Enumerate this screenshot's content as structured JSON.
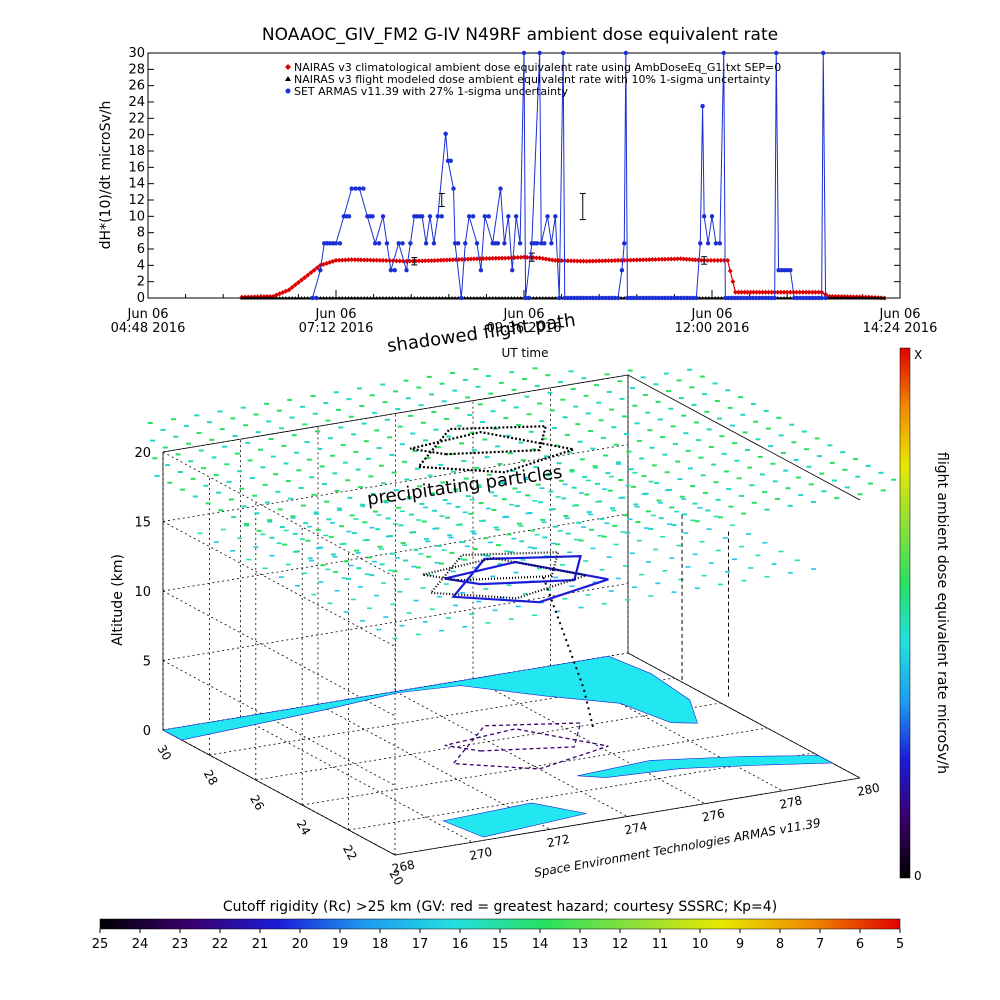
{
  "colors": {
    "climatological": "#dd0000",
    "modeled": "#000000",
    "armas": "#1a2fd4",
    "ocean": "#ffffff",
    "land": "#22e6f0",
    "grid": "#000000",
    "dose_scale": [
      "#000000",
      "#3a006b",
      "#1b1bd8",
      "#1e9cf0",
      "#22e0e0",
      "#28e060",
      "#8ee03a",
      "#e8e800",
      "#f08a00",
      "#e00000"
    ],
    "rigidity_scale": [
      "#000000",
      "#3a006b",
      "#1b1bd8",
      "#1e9cf0",
      "#22e0e0",
      "#28e060",
      "#8ee03a",
      "#e8e800",
      "#f08a00",
      "#e00000"
    ]
  },
  "chart_data": [
    {
      "type": "line",
      "title": "NOAAOC_GIV_FM2 G-IV    N49RF  ambient dose equivalent rate",
      "xlabel": "UT time",
      "ylabel": "dH*(10)/dt microSv/h",
      "ylim": [
        0,
        30
      ],
      "yticks": [
        "0",
        "2",
        "4",
        "6",
        "8",
        "10",
        "12",
        "14",
        "16",
        "18",
        "20",
        "22",
        "24",
        "26",
        "28",
        "30"
      ],
      "xlim_hours": [
        4.8,
        14.4
      ],
      "xticks": [
        {
          "line1": "Jun 06",
          "line2": "04:48 2016",
          "x": 4.8
        },
        {
          "line1": "Jun 06",
          "line2": "07:12 2016",
          "x": 7.2
        },
        {
          "line1": "Jun 06",
          "line2": "09:36 2016",
          "x": 9.6
        },
        {
          "line1": "Jun 06",
          "line2": "12:00 2016",
          "x": 12.0
        },
        {
          "line1": "Jun 06",
          "line2": "14:24 2016",
          "x": 14.4
        }
      ],
      "legend_position": "top-right",
      "series": [
        {
          "name": "NAIRAS v3 climatological ambient dose equivalent rate using AmbDoseEq_G1.txt SEP=0",
          "marker": "diamond",
          "points": [
            [
              6.0,
              0.1
            ],
            [
              6.4,
              0.2
            ],
            [
              6.6,
              1.0
            ],
            [
              6.8,
              2.5
            ],
            [
              7.0,
              4.0
            ],
            [
              7.2,
              4.6
            ],
            [
              7.4,
              4.7
            ],
            [
              7.8,
              4.6
            ],
            [
              8.1,
              4.5
            ],
            [
              8.5,
              4.6
            ],
            [
              9.0,
              4.8
            ],
            [
              9.4,
              4.9
            ],
            [
              9.6,
              5.0
            ],
            [
              9.8,
              4.9
            ],
            [
              10.0,
              4.6
            ],
            [
              10.4,
              4.5
            ],
            [
              10.8,
              4.6
            ],
            [
              11.2,
              4.7
            ],
            [
              11.6,
              4.8
            ],
            [
              11.9,
              4.6
            ],
            [
              12.2,
              4.6
            ],
            [
              12.3,
              0.7
            ],
            [
              12.8,
              0.7
            ],
            [
              13.2,
              0.7
            ],
            [
              13.4,
              0.7
            ],
            [
              13.5,
              0.2
            ],
            [
              14.0,
              0.1
            ],
            [
              14.2,
              0.0
            ]
          ]
        },
        {
          "name": "NAIRAS v3 flight modeled dose ambient equivalent rate with 10% 1-sigma uncertainty",
          "marker": "triangle",
          "points": [
            [
              6.0,
              0.0
            ],
            [
              7.0,
              0.0
            ],
            [
              8.0,
              0.0
            ],
            [
              9.0,
              0.0
            ],
            [
              10.0,
              0.0
            ],
            [
              11.0,
              0.0
            ],
            [
              12.0,
              0.0
            ],
            [
              13.0,
              0.0
            ],
            [
              14.2,
              0.0
            ]
          ],
          "error_bars": [
            [
              8.2,
              4.5,
              0.45
            ],
            [
              9.7,
              5.0,
              0.5
            ],
            [
              11.9,
              4.6,
              0.46
            ]
          ]
        },
        {
          "name": "SET ARMAS v11.39 with 27% 1-sigma uncertainty",
          "marker": "circle",
          "points": [
            [
              6.9,
              0.0
            ],
            [
              7.0,
              3.4
            ],
            [
              7.05,
              6.7
            ],
            [
              7.2,
              6.7
            ],
            [
              7.3,
              10.0
            ],
            [
              7.4,
              13.4
            ],
            [
              7.5,
              13.4
            ],
            [
              7.6,
              10.0
            ],
            [
              7.7,
              6.7
            ],
            [
              7.8,
              10.0
            ],
            [
              7.85,
              6.7
            ],
            [
              7.9,
              3.4
            ],
            [
              8.0,
              6.7
            ],
            [
              8.1,
              3.4
            ],
            [
              8.15,
              6.7
            ],
            [
              8.2,
              10.0
            ],
            [
              8.3,
              10.0
            ],
            [
              8.35,
              6.7
            ],
            [
              8.4,
              10.0
            ],
            [
              8.45,
              6.7
            ],
            [
              8.5,
              10.0
            ],
            [
              8.6,
              20.1
            ],
            [
              8.63,
              16.8
            ],
            [
              8.7,
              13.4
            ],
            [
              8.72,
              6.7
            ],
            [
              8.8,
              0.0
            ],
            [
              8.85,
              6.7
            ],
            [
              8.9,
              10.0
            ],
            [
              9.0,
              6.7
            ],
            [
              9.05,
              3.4
            ],
            [
              9.1,
              10.0
            ],
            [
              9.2,
              6.7
            ],
            [
              9.3,
              13.4
            ],
            [
              9.35,
              6.7
            ],
            [
              9.4,
              10.0
            ],
            [
              9.45,
              3.4
            ],
            [
              9.5,
              10.0
            ],
            [
              9.55,
              6.7
            ],
            [
              9.6,
              30.0
            ],
            [
              9.62,
              0.0
            ],
            [
              9.7,
              6.7
            ],
            [
              9.8,
              30.0
            ],
            [
              9.82,
              6.7
            ],
            [
              9.9,
              10.0
            ],
            [
              9.95,
              6.7
            ],
            [
              10.0,
              10.0
            ],
            [
              10.05,
              0.0
            ],
            [
              10.1,
              30.0
            ],
            [
              10.12,
              0.0
            ],
            [
              10.8,
              0.0
            ],
            [
              10.85,
              3.4
            ],
            [
              10.88,
              6.7
            ],
            [
              10.9,
              30.0
            ],
            [
              10.92,
              0.0
            ],
            [
              11.8,
              0.0
            ],
            [
              11.85,
              6.7
            ],
            [
              11.88,
              23.5
            ],
            [
              11.9,
              10.0
            ],
            [
              11.95,
              6.7
            ],
            [
              12.0,
              10.0
            ],
            [
              12.05,
              6.7
            ],
            [
              12.1,
              6.7
            ],
            [
              12.15,
              30.0
            ],
            [
              12.17,
              0.0
            ],
            [
              12.8,
              0.0
            ],
            [
              12.82,
              30.0
            ],
            [
              12.85,
              3.4
            ],
            [
              13.0,
              3.4
            ],
            [
              13.05,
              0.0
            ],
            [
              13.4,
              0.0
            ],
            [
              13.42,
              30.0
            ],
            [
              13.45,
              0.0
            ]
          ]
        }
      ]
    },
    {
      "type": "scatter",
      "subtype": "3d-flight-track",
      "zlabel": "Altitude (km)",
      "zticks": [
        "0",
        "5",
        "10",
        "15",
        "20"
      ],
      "lat_ticks": [
        "30",
        "28",
        "26",
        "24",
        "22",
        "20"
      ],
      "lon_ticks": [
        "268",
        "270",
        "272",
        "274",
        "276",
        "278",
        "280"
      ],
      "annotations": [
        "shadowed flight path",
        "precipitating particles"
      ],
      "credit": "Space Environment Technologies ARMAS v11.39",
      "colorbar": {
        "label": "flight ambient dose equivalent rate microSv/h",
        "top": "X",
        "bottom": "0"
      }
    },
    {
      "type": "heatmap",
      "subtype": "colorbar",
      "title": "Cutoff rigidity (Rc) >25 km (GV: red = greatest hazard; courtesy SSSRC; Kp=4)",
      "ticks": [
        "25",
        "24",
        "23",
        "22",
        "21",
        "20",
        "19",
        "18",
        "17",
        "16",
        "15",
        "14",
        "13",
        "12",
        "11",
        "10",
        "9",
        "8",
        "7",
        "6",
        "5"
      ]
    }
  ]
}
